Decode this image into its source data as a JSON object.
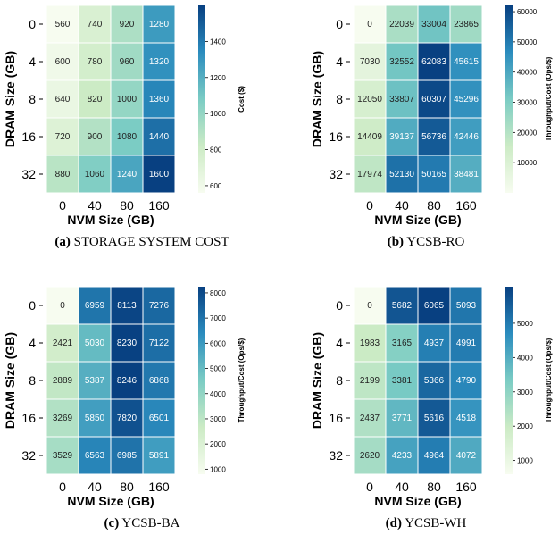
{
  "figure": {
    "captions": [
      {
        "label": "(a)",
        "text": "STORAGE SYSTEM COST"
      },
      {
        "label": "(b)",
        "text": "YCSB-RO"
      },
      {
        "label": "(c)",
        "text": "YCSB-BA"
      },
      {
        "label": "(d)",
        "text": "YCSB-WH"
      }
    ]
  },
  "colors": {
    "scale_low": "#f7fcf0",
    "scale_mid1": "#ccebc5",
    "scale_mid2": "#7bccc4",
    "scale_mid3": "#2b8cbe",
    "scale_high": "#084081"
  },
  "chart_data": [
    {
      "type": "heatmap",
      "xlabel": "NVM Size (GB)",
      "ylabel": "DRAM Size (GB)",
      "x_categories": [
        "0",
        "40",
        "80",
        "160"
      ],
      "y_categories": [
        "0",
        "4",
        "8",
        "16",
        "32"
      ],
      "values": [
        [
          560,
          740,
          920,
          1280
        ],
        [
          600,
          780,
          960,
          1320
        ],
        [
          640,
          820,
          1000,
          1360
        ],
        [
          720,
          900,
          1080,
          1440
        ],
        [
          880,
          1060,
          1240,
          1600
        ]
      ],
      "colorbar_label": "Cost ($)",
      "colorbar_range": [
        560,
        1600
      ],
      "colorbar_ticks": [
        "600",
        "800",
        "1000",
        "1200",
        "1400"
      ]
    },
    {
      "type": "heatmap",
      "xlabel": "NVM Size (GB)",
      "ylabel": "DRAM Size (GB)",
      "x_categories": [
        "0",
        "40",
        "80",
        "160"
      ],
      "y_categories": [
        "0",
        "4",
        "8",
        "16",
        "32"
      ],
      "values": [
        [
          0,
          22039,
          33004,
          23865
        ],
        [
          7030,
          32552,
          62083,
          45615
        ],
        [
          12050,
          33807,
          60307,
          45296
        ],
        [
          14409,
          39137,
          56736,
          42446
        ],
        [
          17974,
          52130,
          50165,
          38481
        ]
      ],
      "colorbar_label": "Throughput/Cost (Ops/$)",
      "colorbar_range": [
        0,
        62083
      ],
      "colorbar_ticks": [
        "10000",
        "20000",
        "30000",
        "40000",
        "50000",
        "60000"
      ]
    },
    {
      "type": "heatmap",
      "xlabel": "NVM Size (GB)",
      "ylabel": "DRAM Size (GB)",
      "x_categories": [
        "0",
        "40",
        "80",
        "160"
      ],
      "y_categories": [
        "0",
        "4",
        "8",
        "16",
        "32"
      ],
      "values": [
        [
          0,
          6959,
          8113,
          7276
        ],
        [
          2421,
          5030,
          8230,
          7122
        ],
        [
          2889,
          5387,
          8246,
          6868
        ],
        [
          3269,
          5850,
          7820,
          6501
        ],
        [
          3529,
          6563,
          6985,
          5891
        ]
      ],
      "colorbar_label": "Throughput/Cost (Ops/$)",
      "colorbar_range": [
        800,
        8246
      ],
      "colorbar_ticks": [
        "1000",
        "2000",
        "3000",
        "4000",
        "5000",
        "6000",
        "7000",
        "8000"
      ]
    },
    {
      "type": "heatmap",
      "xlabel": "NVM Size (GB)",
      "ylabel": "DRAM Size (GB)",
      "x_categories": [
        "0",
        "40",
        "80",
        "160"
      ],
      "y_categories": [
        "0",
        "4",
        "8",
        "16",
        "32"
      ],
      "values": [
        [
          0,
          5682,
          6065,
          5093
        ],
        [
          1983,
          3165,
          4937,
          4991
        ],
        [
          2199,
          3381,
          5366,
          4790
        ],
        [
          2437,
          3771,
          5616,
          4518
        ],
        [
          2620,
          4233,
          4964,
          4072
        ]
      ],
      "colorbar_label": "Throughput/Cost (Ops/$)",
      "colorbar_range": [
        600,
        6065
      ],
      "colorbar_ticks": [
        "1000",
        "2000",
        "3000",
        "4000",
        "5000"
      ]
    }
  ]
}
